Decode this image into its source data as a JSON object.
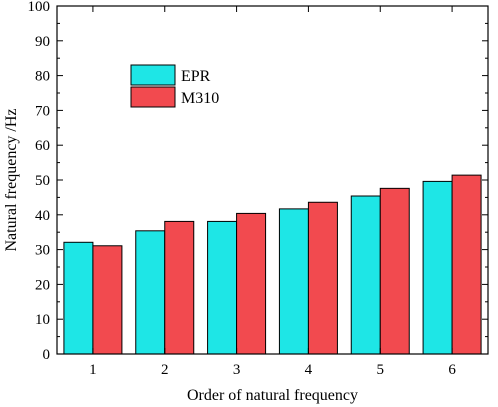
{
  "chart_data": {
    "type": "bar",
    "title": "",
    "xlabel": "Order of natural frequency",
    "ylabel": "Natural frequency /Hz",
    "categories": [
      "1",
      "2",
      "3",
      "4",
      "5",
      "6"
    ],
    "series": [
      {
        "name": "EPR",
        "color": "#1ee6e6",
        "values": [
          32.1,
          35.4,
          38.1,
          41.7,
          45.4,
          49.6
        ]
      },
      {
        "name": "M310",
        "color": "#f24a4f",
        "values": [
          31.1,
          38.1,
          40.4,
          43.6,
          47.6,
          51.4
        ]
      }
    ],
    "ylim": [
      0,
      100
    ],
    "yticks": [
      "0",
      "10",
      "20",
      "30",
      "40",
      "50",
      "60",
      "70",
      "80",
      "90",
      "100"
    ],
    "grid": false,
    "legend_position": "top-left"
  }
}
